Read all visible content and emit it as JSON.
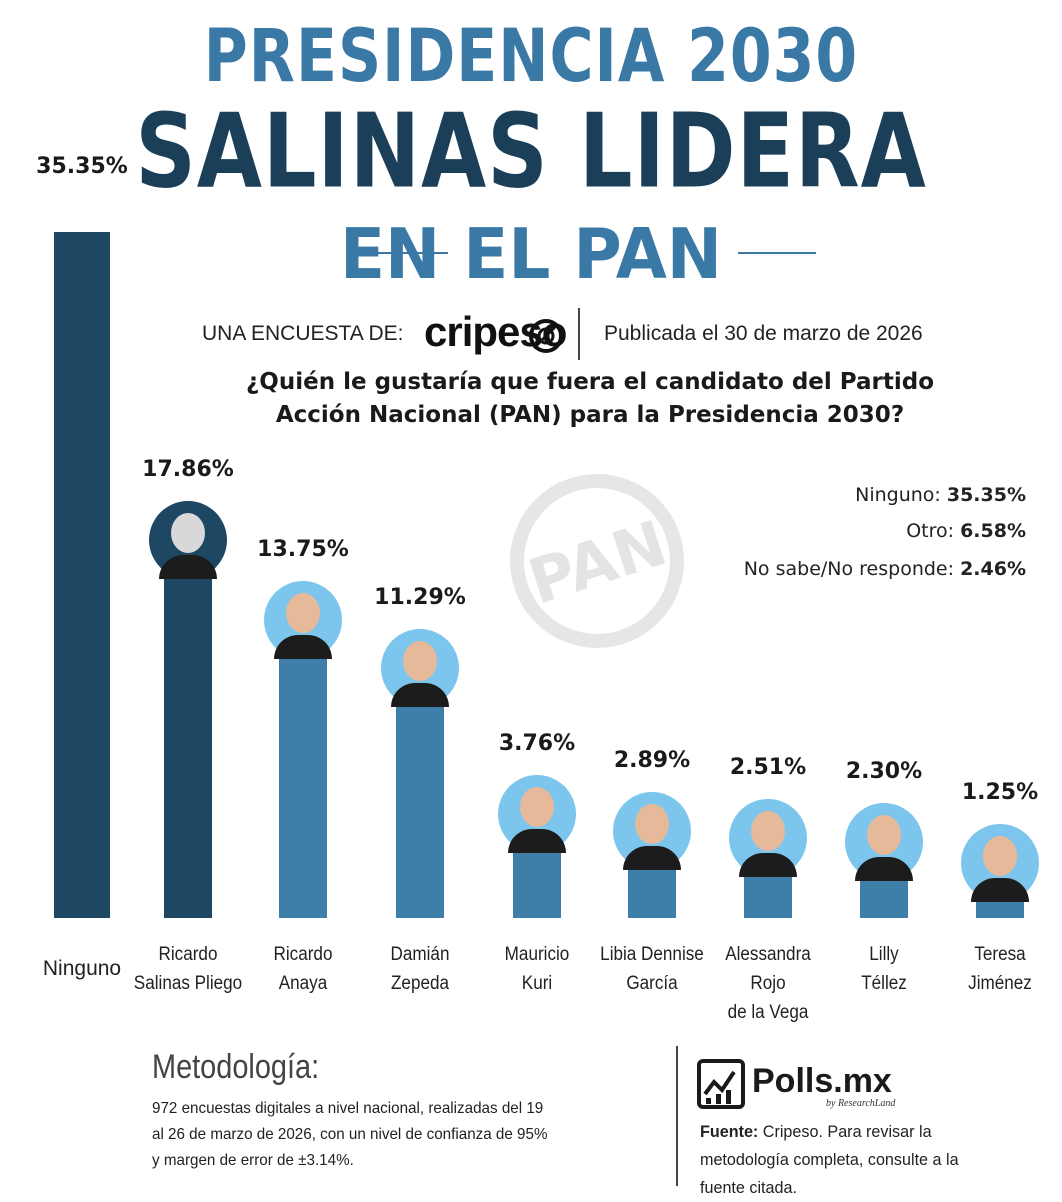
{
  "header": {
    "line1": "PRESIDENCIA 2030",
    "line2": "SALINAS LIDERA",
    "line3": "EN EL PAN",
    "byline": "UNA ENCUESTA DE:",
    "pollster_logo": "cripeso",
    "published": "Publicada el 30 de marzo de 2026",
    "question_line1": "¿Quién le gustaría que fuera el candidato del Partido",
    "question_line2": "Acción Nacional (PAN) para la Presidencia 2030?"
  },
  "watermark": "PAN",
  "others": [
    {
      "label": "Ninguno: ",
      "value": "35.35%"
    },
    {
      "label": "Otro: ",
      "value": "6.58%"
    },
    {
      "label": "No sabe/No responde: ",
      "value": "2.46%"
    }
  ],
  "chart_data": {
    "type": "bar",
    "categories": [
      "Ninguno",
      "Ricardo Salinas Pliego",
      "Ricardo Anaya",
      "Damián Zepeda",
      "Mauricio Kuri",
      "Libia Dennise García",
      "Alessandra Rojo de la Vega",
      "Lilly Téllez",
      "Teresa Jiménez"
    ],
    "category_lines": [
      [
        "Ninguno"
      ],
      [
        "Ricardo",
        "Salinas Pliego"
      ],
      [
        "Ricardo",
        "Anaya"
      ],
      [
        "Damián",
        "Zepeda"
      ],
      [
        "Mauricio",
        "Kuri"
      ],
      [
        "Libia Dennise",
        "García"
      ],
      [
        "Alessandra",
        "Rojo",
        "de la Vega"
      ],
      [
        "Lilly",
        "Téllez"
      ],
      [
        "Teresa",
        "Jiménez"
      ]
    ],
    "values": [
      35.35,
      17.86,
      13.75,
      11.29,
      3.76,
      2.89,
      2.51,
      2.3,
      1.25
    ],
    "labels": [
      "35.35%",
      "17.86%",
      "13.75%",
      "11.29%",
      "3.76%",
      "2.89%",
      "2.51%",
      "2.30%",
      "1.25%"
    ],
    "ylim": [
      0,
      35.35
    ],
    "colors": {
      "dark": "#1e4763",
      "light": "#3f7ea9"
    },
    "bar_colors": [
      "dark",
      "dark",
      "light",
      "light",
      "light",
      "light",
      "light",
      "light",
      "light"
    ],
    "avatars": [
      false,
      true,
      true,
      true,
      true,
      true,
      true,
      true,
      true
    ],
    "grid": false,
    "legend": "none"
  },
  "methodology": {
    "title": "Metodología:",
    "line1": "972 encuestas digitales a nivel nacional, realizadas del 19",
    "line2": "al 26 de marzo de 2026, con un nivel de confianza de 95%",
    "line3": "y margen de error de ±3.14%."
  },
  "source": {
    "brand": "Polls.mx",
    "brand_sub": "by ResearchLand",
    "label": "Fuente:",
    "text": " Cripeso. Para revisar la metodología completa, consulte a la fuente citada."
  }
}
